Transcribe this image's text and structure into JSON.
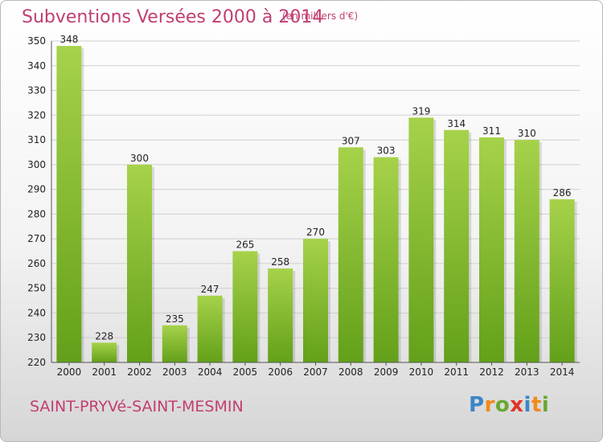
{
  "header": {
    "title": "Subventions Versées 2000 à 2014",
    "subtitle": "(en milliers d'€)"
  },
  "footer": {
    "place": "SAINT-PRYVé-SAINT-MESMIN",
    "brand": "Proxiti",
    "brand_letters": [
      {
        "ch": "P",
        "color": "#3a86c8"
      },
      {
        "ch": "r",
        "color": "#f08a1c"
      },
      {
        "ch": "o",
        "color": "#6aa832"
      },
      {
        "ch": "x",
        "color": "#e0342a"
      },
      {
        "ch": "i",
        "color": "#3a86c8"
      },
      {
        "ch": "t",
        "color": "#f08a1c"
      },
      {
        "ch": "i",
        "color": "#6aa832"
      }
    ]
  },
  "colors": {
    "bar_light": "#a6d24a",
    "bar_dark": "#63a019",
    "title": "#c13e72",
    "grid": "#cfcfcf"
  },
  "chart_data": {
    "type": "bar",
    "categories": [
      "2000",
      "2001",
      "2002",
      "2003",
      "2004",
      "2005",
      "2006",
      "2007",
      "2008",
      "2009",
      "2010",
      "2011",
      "2012",
      "2013",
      "2014"
    ],
    "values": [
      348,
      228,
      300,
      235,
      247,
      265,
      258,
      270,
      307,
      303,
      319,
      314,
      311,
      310,
      286
    ],
    "title": "Subventions Versées 2000 à 2014",
    "ylim": [
      220,
      350
    ],
    "yticks": [
      220,
      230,
      240,
      250,
      260,
      270,
      280,
      290,
      300,
      310,
      320,
      330,
      340,
      350
    ],
    "grid": true,
    "data_labels": true
  }
}
